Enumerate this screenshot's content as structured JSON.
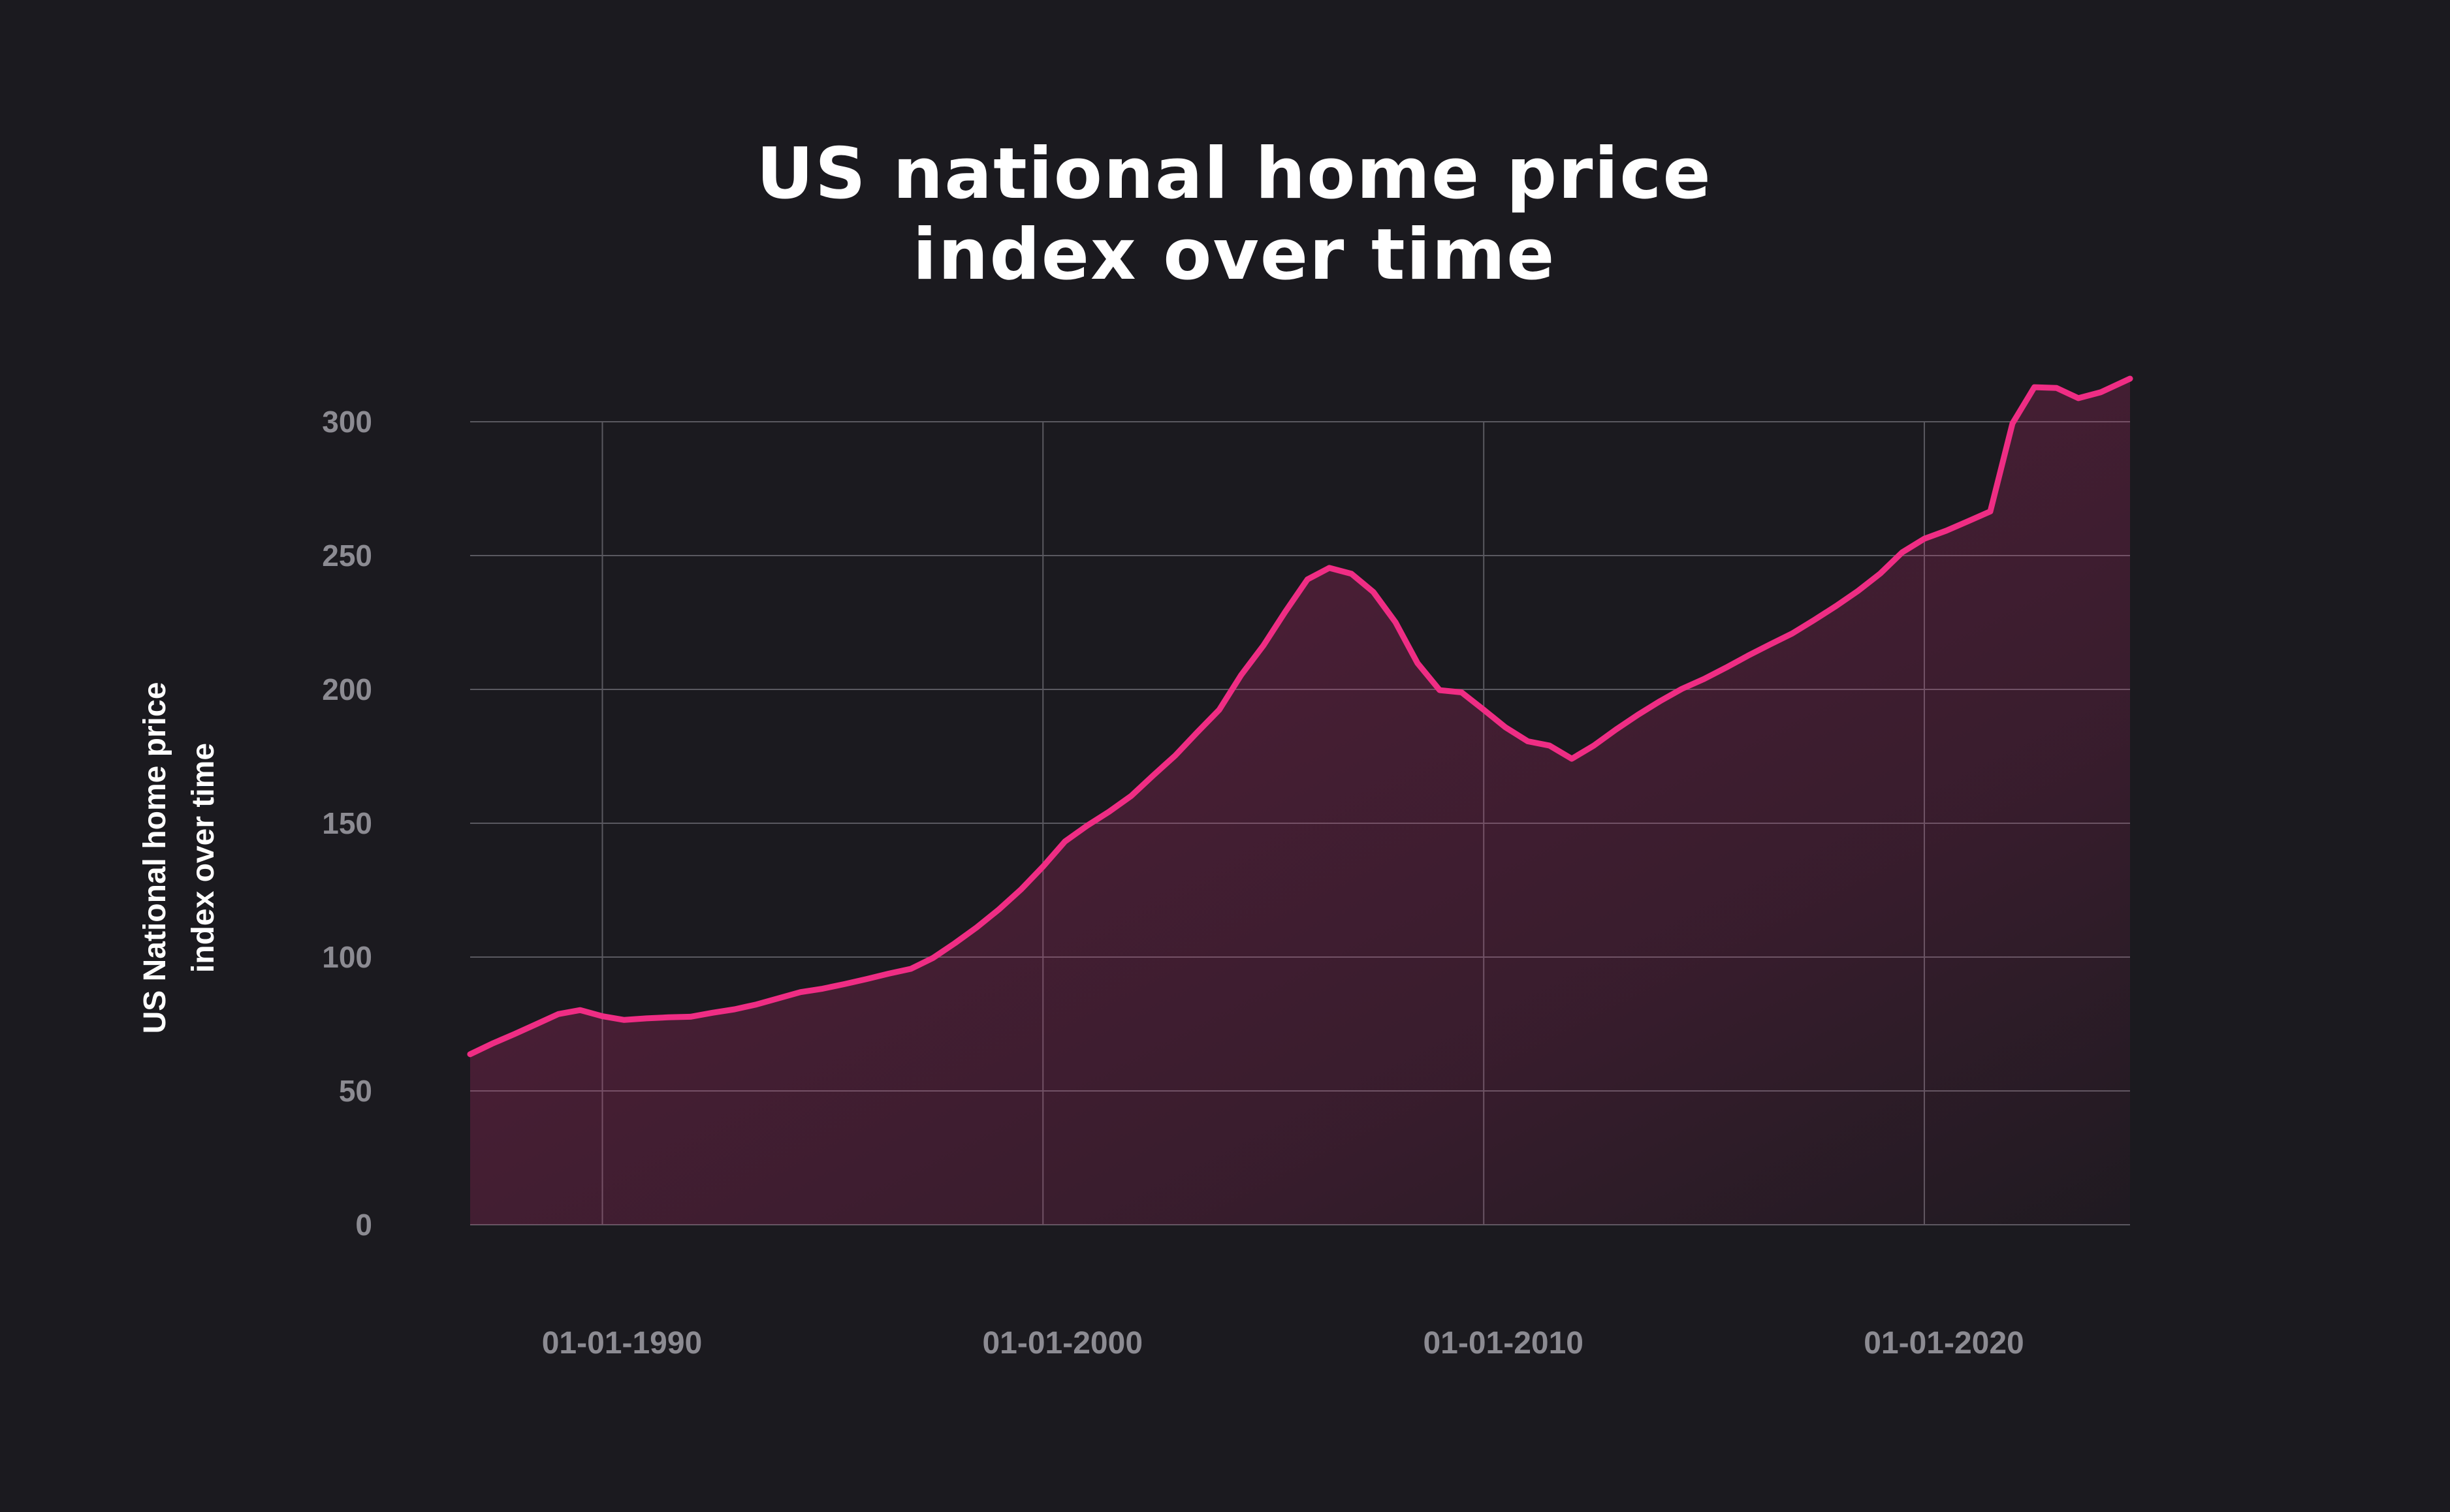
{
  "chart_data": {
    "type": "area",
    "title_lines": [
      "US national home price",
      "index over time"
    ],
    "ylabel_lines": [
      "US National home price",
      "index over time"
    ],
    "xlabel": "",
    "x_ticks": [
      "01-01-1990",
      "01-01-2000",
      "01-01-2010",
      "01-01-2020"
    ],
    "y_ticks": [
      0,
      50,
      100,
      150,
      200,
      250,
      300
    ],
    "ylim": [
      0,
      300
    ],
    "xlim": [
      "1987-01-01",
      "2024-09-01"
    ],
    "grid": true,
    "legend": "none",
    "colors": {
      "background": "#1b1a1f",
      "line": "#ef2d84",
      "grid": "#5a5960",
      "text": "#ffffff",
      "tick": "#8c8b92"
    },
    "series": [
      {
        "x": [
          "1987-01",
          "1987-07",
          "1988-01",
          "1988-07",
          "1989-01",
          "1989-07",
          "1990-01",
          "1990-07",
          "1991-01",
          "1991-07",
          "1992-01",
          "1992-07",
          "1993-01",
          "1993-07",
          "1994-01",
          "1994-07",
          "1995-01",
          "1995-07",
          "1996-01",
          "1996-07",
          "1997-01",
          "1997-07",
          "1998-01",
          "1998-07",
          "1999-01",
          "1999-07",
          "2000-01",
          "2000-07",
          "2001-01",
          "2001-07",
          "2002-01",
          "2002-07",
          "2003-01",
          "2003-07",
          "2004-01",
          "2004-07",
          "2005-01",
          "2005-07",
          "2006-01",
          "2006-07",
          "2007-01",
          "2007-07",
          "2008-01",
          "2008-07",
          "2009-01",
          "2009-07",
          "2010-01",
          "2010-07",
          "2011-01",
          "2011-07",
          "2012-01",
          "2012-07",
          "2013-01",
          "2013-07",
          "2014-01",
          "2014-07",
          "2015-01",
          "2015-07",
          "2016-01",
          "2016-07",
          "2017-01",
          "2017-07",
          "2018-01",
          "2018-07",
          "2019-01",
          "2019-07",
          "2020-01",
          "2020-07",
          "2021-01",
          "2021-07",
          "2022-01",
          "2022-07",
          "2023-01",
          "2023-07",
          "2024-01",
          "2024-09"
        ],
        "values": [
          63.7,
          67.6,
          71.2,
          74.9,
          78.7,
          80.2,
          77.9,
          76.5,
          77.1,
          77.5,
          77.7,
          79.2,
          80.5,
          82.3,
          84.6,
          86.9,
          88.2,
          89.9,
          91.8,
          93.8,
          95.6,
          99.6,
          105.2,
          111.1,
          117.8,
          125.2,
          133.8,
          143.2,
          149.1,
          154.3,
          160.2,
          167.8,
          175.3,
          183.9,
          192.4,
          205.4,
          216.4,
          229.0,
          241.1,
          245.4,
          243.2,
          236.4,
          225.1,
          209.8,
          199.7,
          198.9,
          192.4,
          185.8,
          180.6,
          179.0,
          174.1,
          179.0,
          185.0,
          190.5,
          195.6,
          200.2,
          203.9,
          208.1,
          212.6,
          216.8,
          220.9,
          225.9,
          231.2,
          236.8,
          243.3,
          251.2,
          256.3,
          259.3,
          262.9,
          266.5,
          299.4,
          312.9,
          312.6,
          308.8,
          311.0,
          316.1
        ]
      }
    ]
  }
}
